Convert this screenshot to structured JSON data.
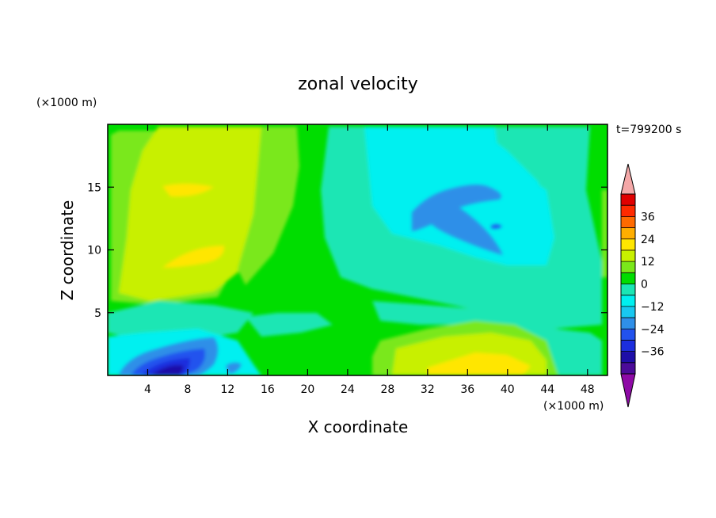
{
  "chart_data": {
    "type": "heatmap",
    "title": "zonal velocity",
    "xlabel": "X coordinate",
    "ylabel": "Z coordinate",
    "x_unit": "(×1000 m)",
    "y_unit": "(×1000 m)",
    "time_label": "t=799200 s",
    "xlim": [
      0,
      50
    ],
    "ylim": [
      0,
      20
    ],
    "x_ticks": [
      4,
      8,
      12,
      16,
      20,
      24,
      28,
      32,
      36,
      40,
      44,
      48
    ],
    "y_ticks": [
      5,
      10,
      15
    ],
    "colorbar": {
      "levels": [
        -42,
        -36,
        -30,
        -24,
        -18,
        -12,
        -6,
        0,
        6,
        12,
        18,
        24,
        30,
        36,
        42
      ],
      "labeled_ticks": [
        -36,
        -24,
        -12,
        0,
        12,
        24,
        36
      ],
      "colors": [
        "#4b0b99",
        "#1e0ea8",
        "#1c2ede",
        "#2252ee",
        "#2f8fe8",
        "#18c8f0",
        "#00f0f0",
        "#1ae6b4",
        "#00dd00",
        "#7ae81a",
        "#c8f000",
        "#ffe600",
        "#ffae00",
        "#ff6a00",
        "#ff2a00",
        "#e00000"
      ],
      "under_color": "#8e0aa6",
      "over_color": "#f4a8a8"
    },
    "field_description": {
      "features": [
        {
          "name": "negative core upper middle",
          "x": 34,
          "z": 13,
          "value": -20
        },
        {
          "name": "negative core lower left",
          "x": 7,
          "z": 1,
          "value": -30
        },
        {
          "name": "positive max upper left",
          "x": 9,
          "z": 15,
          "value": 14
        },
        {
          "name": "positive max mid left",
          "x": 10,
          "z": 9.5,
          "value": 14
        },
        {
          "name": "positive max lower right",
          "x": 38,
          "z": 1,
          "value": 14
        }
      ]
    }
  }
}
